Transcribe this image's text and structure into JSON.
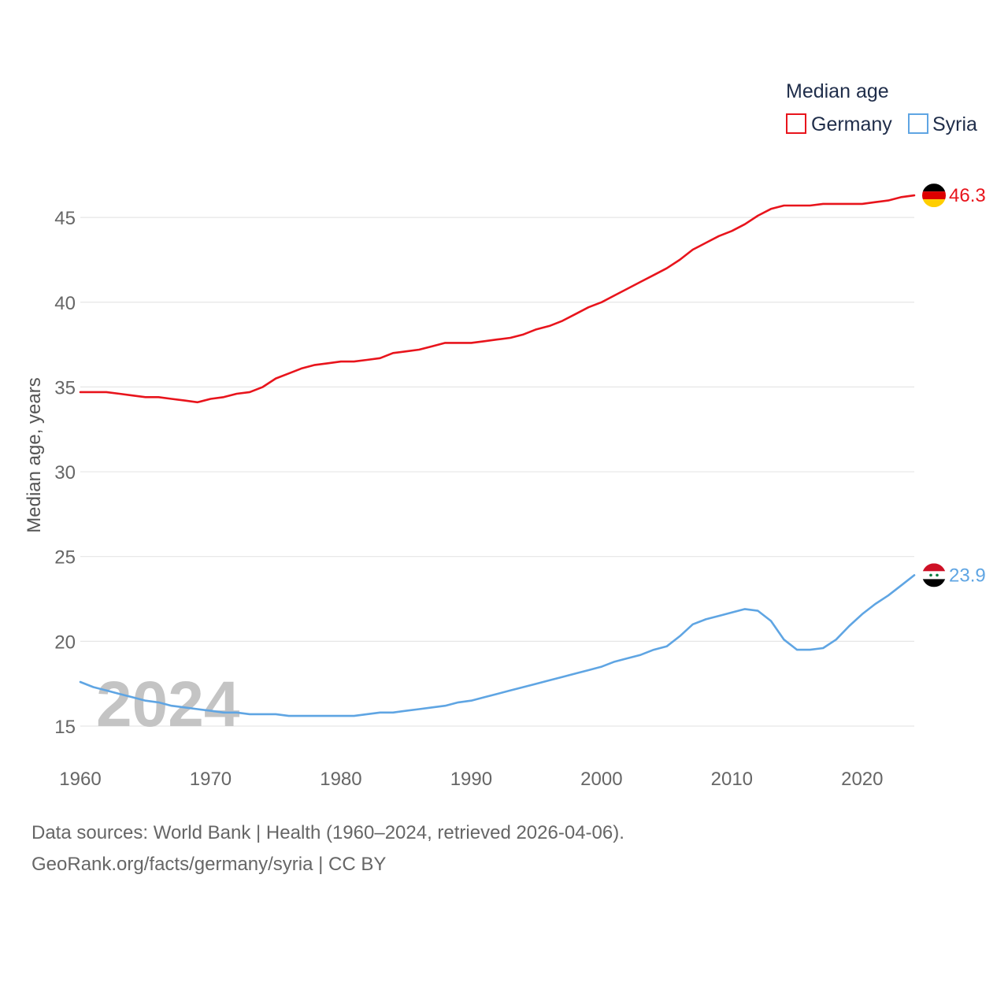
{
  "chart_data": {
    "type": "line",
    "legend_title": "Median age",
    "ylabel": "Median age, years",
    "xlim": [
      1960,
      2024
    ],
    "ylim": [
      13,
      48
    ],
    "y_ticks": [
      15,
      20,
      25,
      30,
      35,
      40,
      45
    ],
    "x_ticks": [
      1960,
      1970,
      1980,
      1990,
      2000,
      2010,
      2020
    ],
    "current_year": "2024",
    "x": [
      1960,
      1961,
      1962,
      1963,
      1964,
      1965,
      1966,
      1967,
      1968,
      1969,
      1970,
      1971,
      1972,
      1973,
      1974,
      1975,
      1976,
      1977,
      1978,
      1979,
      1980,
      1981,
      1982,
      1983,
      1984,
      1985,
      1986,
      1987,
      1988,
      1989,
      1990,
      1991,
      1992,
      1993,
      1994,
      1995,
      1996,
      1997,
      1998,
      1999,
      2000,
      2001,
      2002,
      2003,
      2004,
      2005,
      2006,
      2007,
      2008,
      2009,
      2010,
      2011,
      2012,
      2013,
      2014,
      2015,
      2016,
      2017,
      2018,
      2019,
      2020,
      2021,
      2022,
      2023,
      2024
    ],
    "series": [
      {
        "name": "Germany",
        "color": "#e8141c",
        "end_label": "46.3",
        "flag": "germany-flag",
        "values": [
          34.7,
          34.7,
          34.7,
          34.6,
          34.5,
          34.4,
          34.4,
          34.3,
          34.2,
          34.1,
          34.3,
          34.4,
          34.6,
          34.7,
          35.0,
          35.5,
          35.8,
          36.1,
          36.3,
          36.4,
          36.5,
          36.5,
          36.6,
          36.7,
          37.0,
          37.1,
          37.2,
          37.4,
          37.6,
          37.6,
          37.6,
          37.7,
          37.8,
          37.9,
          38.1,
          38.4,
          38.6,
          38.9,
          39.3,
          39.7,
          40.0,
          40.4,
          40.8,
          41.2,
          41.6,
          42.0,
          42.5,
          43.1,
          43.5,
          43.9,
          44.2,
          44.6,
          45.1,
          45.5,
          45.7,
          45.7,
          45.7,
          45.8,
          45.8,
          45.8,
          45.8,
          45.9,
          46.0,
          46.2,
          46.3
        ]
      },
      {
        "name": "Syria",
        "color": "#5fa5e3",
        "end_label": "23.9",
        "flag": "syria-flag",
        "values": [
          17.6,
          17.3,
          17.1,
          16.9,
          16.7,
          16.5,
          16.4,
          16.2,
          16.1,
          16.0,
          15.9,
          15.8,
          15.8,
          15.7,
          15.7,
          15.7,
          15.6,
          15.6,
          15.6,
          15.6,
          15.6,
          15.6,
          15.7,
          15.8,
          15.8,
          15.9,
          16.0,
          16.1,
          16.2,
          16.4,
          16.5,
          16.7,
          16.9,
          17.1,
          17.3,
          17.5,
          17.7,
          17.9,
          18.1,
          18.3,
          18.5,
          18.8,
          19.0,
          19.2,
          19.5,
          19.7,
          20.3,
          21.0,
          21.3,
          21.5,
          21.7,
          21.9,
          21.8,
          21.2,
          20.1,
          19.5,
          19.5,
          19.6,
          20.1,
          20.9,
          21.6,
          22.2,
          22.7,
          23.3,
          23.9
        ]
      }
    ]
  },
  "footer": {
    "line1": "Data sources: World Bank | Health (1960–2024, retrieved 2026-04-06).",
    "line2": "GeoRank.org/facts/germany/syria | CC BY"
  }
}
